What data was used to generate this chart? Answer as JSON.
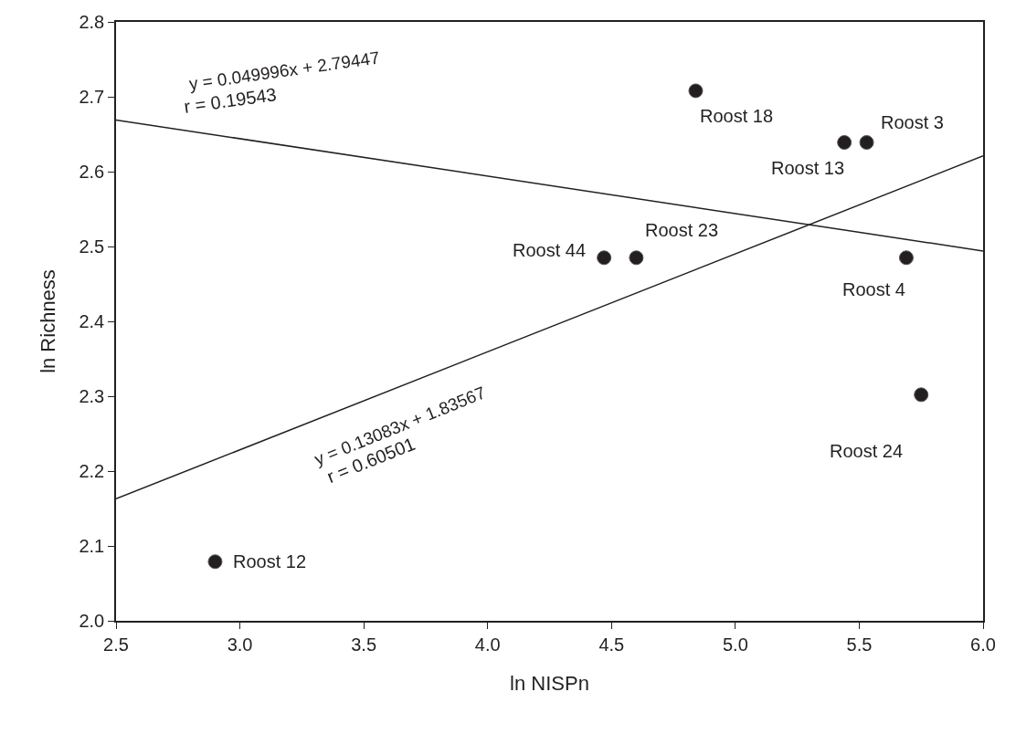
{
  "chart_data": {
    "type": "scatter",
    "xlabel": "ln NISPn",
    "ylabel": "ln Richness",
    "xlim": [
      2.5,
      6.0
    ],
    "xticks": [
      {
        "value": 2.5,
        "label": "2.5"
      },
      {
        "value": 3.0,
        "label": "3.0"
      },
      {
        "value": 3.5,
        "label": "3.5"
      },
      {
        "value": 4.0,
        "label": "4.0"
      },
      {
        "value": 4.5,
        "label": "4.5"
      },
      {
        "value": 5.0,
        "label": "5.0"
      },
      {
        "value": 5.5,
        "label": "5.5"
      },
      {
        "value": 6.0,
        "label": "6.0"
      }
    ],
    "ylim": [
      2.0,
      2.8
    ],
    "yticks": [
      {
        "value": 2.0,
        "label": "2.0"
      },
      2.1,
      2.2,
      2.3,
      2.4,
      2.5,
      2.6,
      2.7,
      2.8
    ],
    "marker": "circle",
    "series": [
      {
        "name": "Roost 12",
        "color": "#231f20",
        "x": [
          2.9
        ],
        "values": [
          2.079
        ]
      },
      {
        "name": "Roost 44",
        "color": "#231f20",
        "x": [
          4.47
        ],
        "values": [
          2.485
        ]
      },
      {
        "name": "Roost 23",
        "color": "#231f20",
        "x": [
          4.6
        ],
        "values": [
          2.485
        ]
      },
      {
        "name": "Roost 18",
        "color": "#231f20",
        "x": [
          4.84
        ],
        "values": [
          2.708
        ]
      },
      {
        "name": "Roost 13",
        "color": "#231f20",
        "x": [
          5.44
        ],
        "values": [
          2.639
        ]
      },
      {
        "name": "Roost 3",
        "color": "#231f20",
        "x": [
          5.53
        ],
        "values": [
          2.639
        ]
      },
      {
        "name": "Roost 4",
        "color": "#231f20",
        "x": [
          5.69
        ],
        "values": [
          2.485
        ]
      },
      {
        "name": "Roost 24",
        "color": "#231f20",
        "x": [
          5.75
        ],
        "values": [
          2.302
        ]
      },
      {
        "type": "line",
        "color": "#231f20",
        "x": [
          2.5,
          6.0
        ],
        "values": [
          2.669,
          2.494
        ],
        "line_style": "solid",
        "marker": "none"
      },
      {
        "type": "line",
        "color": "#231f20",
        "x": [
          2.5,
          6.0
        ],
        "values": [
          2.163,
          2.621
        ],
        "line_style": "solid",
        "marker": "none"
      }
    ],
    "annotations": [
      "y = 0.049996x + 2.79447",
      "r = 0.19543",
      "y = 0.13083x + 1.83567",
      "r = 0.60501"
    ]
  }
}
